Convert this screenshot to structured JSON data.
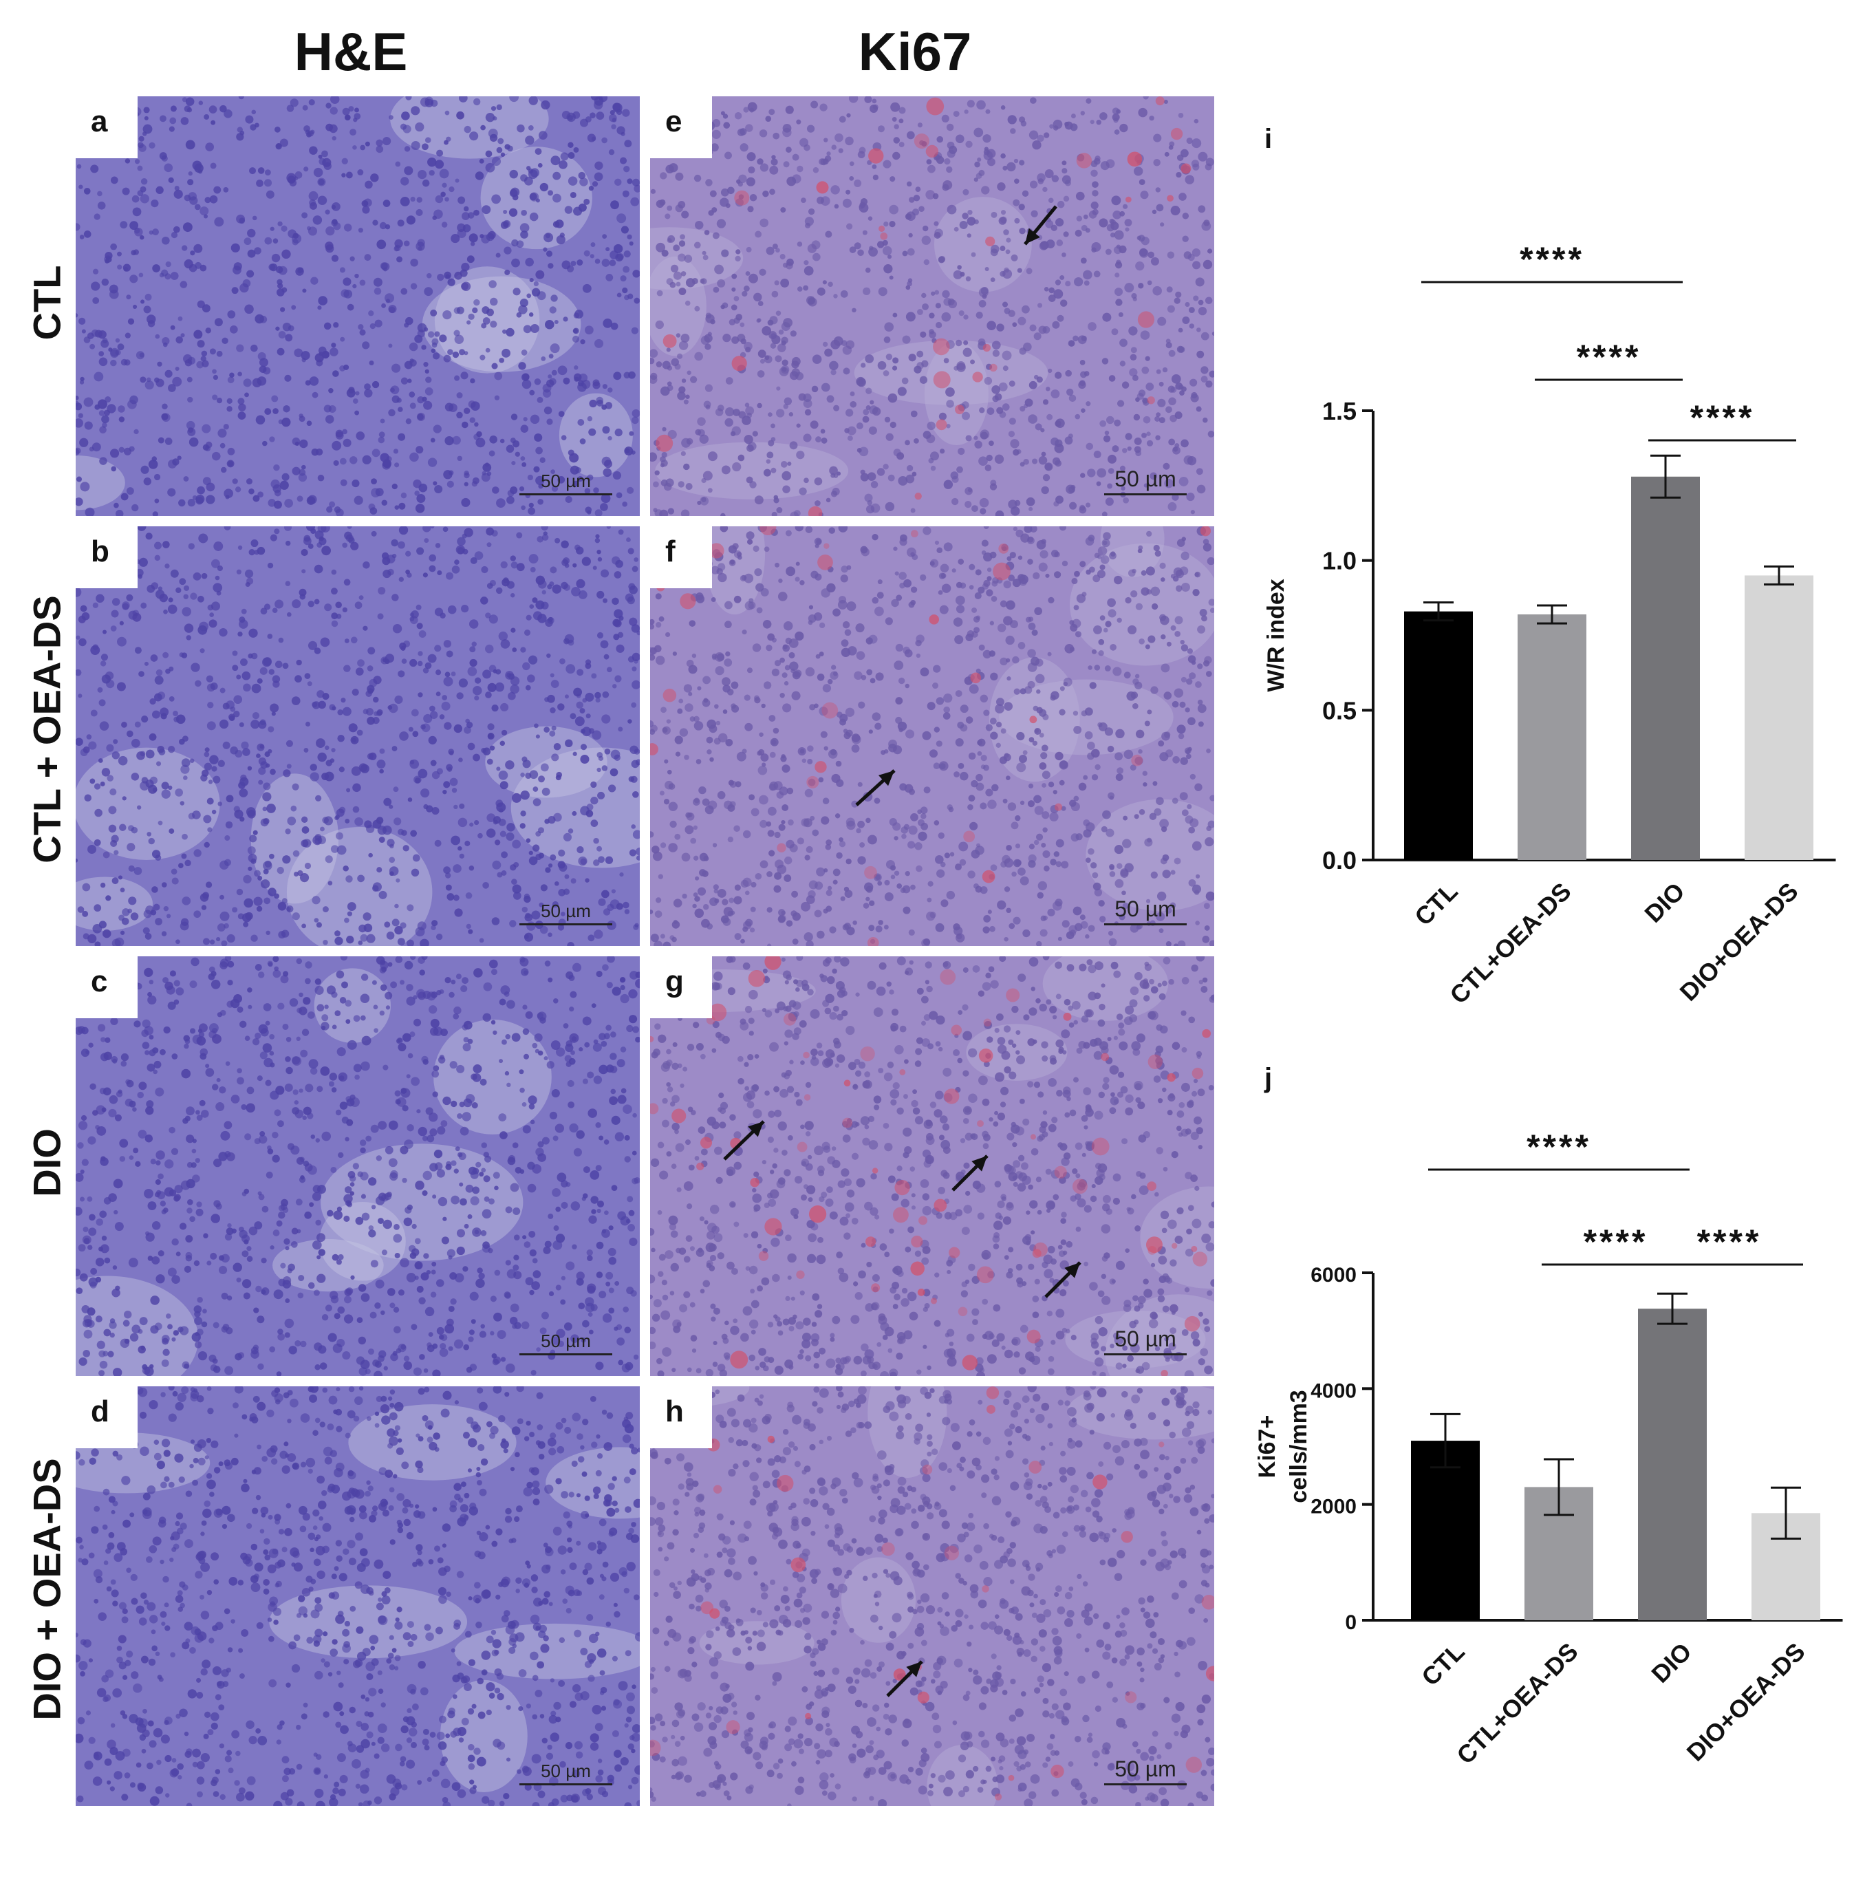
{
  "columns": [
    "H&E",
    "Ki67"
  ],
  "rows": [
    "CTL",
    "CTL + OEA-DS",
    "DIO",
    "DIO + OEA-DS"
  ],
  "panels": {
    "he": [
      "a",
      "b",
      "c",
      "d"
    ],
    "ki": [
      "e",
      "f",
      "g",
      "h"
    ]
  },
  "scale_bar": "50 µm",
  "colors": {
    "he_bg": "#7f77c4",
    "he_cell": "#4e43a6",
    "he_light": "#c6c6e2",
    "ki_bg": "#9d8bc7",
    "ki_cell": "#6b5aa8",
    "ki_red": "#d2506a",
    "bar_fills": [
      "#000000",
      "#9a9a9e",
      "#747478",
      "#d6d6d6"
    ]
  },
  "chart_data": [
    {
      "panel": "i",
      "type": "bar",
      "categories": [
        "CTL",
        "CTL+OEA-DS",
        "DIO",
        "DIO+OEA-DS"
      ],
      "values": [
        0.83,
        0.82,
        1.28,
        0.95
      ],
      "errors": [
        0.03,
        0.03,
        0.07,
        0.03
      ],
      "ylabel": "W/R index",
      "ylim": [
        0,
        1.5
      ],
      "yticks": [
        "0.0",
        "0.5",
        "1.0",
        "1.5"
      ],
      "significance": [
        {
          "from": 0,
          "to": 2,
          "label": "****"
        },
        {
          "from": 1,
          "to": 2,
          "label": "****"
        },
        {
          "from": 2,
          "to": 3,
          "label": "****"
        }
      ]
    },
    {
      "panel": "j",
      "type": "bar",
      "categories": [
        "CTL",
        "CTL+OEA-DS",
        "DIO",
        "DIO+OEA-DS"
      ],
      "values": [
        3100,
        2300,
        5380,
        1850
      ],
      "errors": [
        460,
        480,
        260,
        440
      ],
      "ylabel": "Ki67+ cells/mm3",
      "ylabel_lines": [
        "Ki67+",
        "cells/mm3"
      ],
      "ylim": [
        0,
        6000
      ],
      "yticks": [
        "0",
        "2000",
        "4000",
        "6000"
      ],
      "significance": [
        {
          "from": 0,
          "to": 2,
          "label": "****"
        },
        {
          "from": 1,
          "to": 2,
          "label": "****"
        },
        {
          "from": 2,
          "to": 3,
          "label": "****"
        }
      ]
    }
  ]
}
